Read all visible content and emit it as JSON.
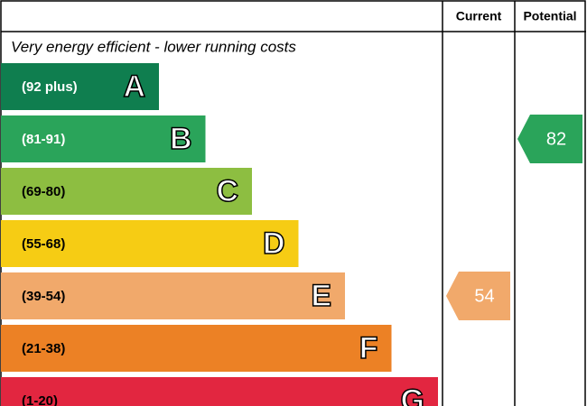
{
  "header": {
    "current": "Current",
    "potential": "Potential"
  },
  "subtitle": "Very energy efficient - lower running costs",
  "bands": [
    {
      "range": "(92 plus)",
      "letter": "A",
      "color": "#0f7e4f",
      "text_color": "#ffffff"
    },
    {
      "range": "(81-91)",
      "letter": "B",
      "color": "#2aa45a",
      "text_color": "#ffffff"
    },
    {
      "range": "(69-80)",
      "letter": "C",
      "color": "#8dbe41",
      "text_color": "#000000"
    },
    {
      "range": "(55-68)",
      "letter": "D",
      "color": "#f6cc14",
      "text_color": "#000000"
    },
    {
      "range": "(39-54)",
      "letter": "E",
      "color": "#f1a96b",
      "text_color": "#000000"
    },
    {
      "range": "(21-38)",
      "letter": "F",
      "color": "#ec8125",
      "text_color": "#000000"
    },
    {
      "range": "(1-20)",
      "letter": "G",
      "color": "#e22640",
      "text_color": "#000000"
    }
  ],
  "current": 54,
  "potential": 82
}
